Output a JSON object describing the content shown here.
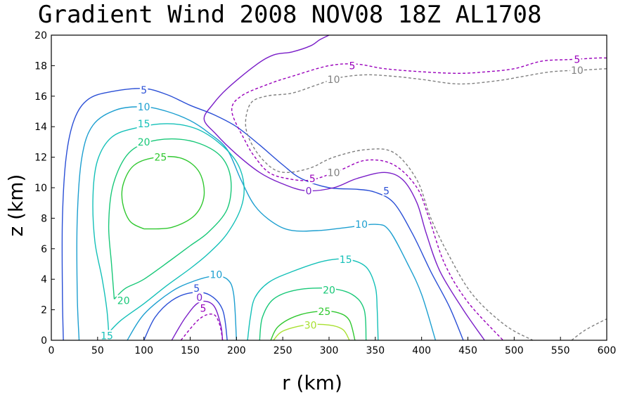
{
  "chart_data": {
    "type": "contour",
    "title": "Gradient Wind 2008 NOV08 18Z  AL1708",
    "xlabel": "r (km)",
    "ylabel": "z (km)",
    "xlim": [
      0,
      600
    ],
    "ylim": [
      0,
      20
    ],
    "xticks": [
      0,
      50,
      100,
      150,
      200,
      250,
      300,
      350,
      400,
      450,
      500,
      550,
      600
    ],
    "yticks": [
      0,
      2,
      4,
      6,
      8,
      10,
      12,
      14,
      16,
      18,
      20
    ],
    "levels": [
      -10,
      -5,
      0,
      5,
      10,
      15,
      20,
      25,
      30
    ],
    "colors": {
      "m10": "#808080",
      "m5": "#9900bb",
      "0": "#7a1ec8",
      "5": "#2a4fd6",
      "10": "#1d9fd0",
      "15": "#14c0b8",
      "20": "#18c878",
      "25": "#30c830",
      "30": "#a8e030"
    },
    "contours": [
      {
        "level": "5",
        "color_key": "5",
        "dashed": false,
        "points": [
          [
            13,
            0
          ],
          [
            12,
            3
          ],
          [
            12,
            8
          ],
          [
            16,
            12
          ],
          [
            25,
            14.5
          ],
          [
            40,
            15.8
          ],
          [
            65,
            16.3
          ],
          [
            100,
            16.5
          ],
          [
            125,
            16.1
          ],
          [
            150,
            15.4
          ],
          [
            175,
            14.8
          ],
          [
            200,
            14.0
          ],
          [
            225,
            12.8
          ],
          [
            250,
            11.5
          ],
          [
            270,
            10.6
          ],
          [
            300,
            10.0
          ],
          [
            330,
            9.9
          ],
          [
            350,
            9.7
          ],
          [
            370,
            9.0
          ],
          [
            390,
            7.0
          ],
          [
            410,
            4.5
          ],
          [
            430,
            2.2
          ],
          [
            445,
            0
          ]
        ]
      },
      {
        "level": "5",
        "color_key": "5",
        "dashed": false,
        "points": [
          [
            100,
            0
          ],
          [
            112,
            1.5
          ],
          [
            130,
            2.6
          ],
          [
            150,
            3.1
          ],
          [
            170,
            3.0
          ],
          [
            185,
            2.0
          ],
          [
            190,
            0
          ]
        ]
      },
      {
        "level": "10",
        "color_key": "10",
        "dashed": false,
        "points": [
          [
            30,
            0
          ],
          [
            28,
            3
          ],
          [
            28,
            8
          ],
          [
            33,
            12
          ],
          [
            45,
            14.1
          ],
          [
            70,
            15.1
          ],
          [
            100,
            15.3
          ],
          [
            125,
            15.0
          ],
          [
            150,
            14.4
          ],
          [
            170,
            13.6
          ],
          [
            190,
            12.5
          ],
          [
            205,
            10.5
          ],
          [
            220,
            8.8
          ],
          [
            240,
            7.7
          ],
          [
            260,
            7.2
          ],
          [
            290,
            7.2
          ],
          [
            320,
            7.4
          ],
          [
            350,
            7.6
          ],
          [
            365,
            7.2
          ],
          [
            385,
            5.0
          ],
          [
            400,
            3.0
          ],
          [
            415,
            0
          ]
        ]
      },
      {
        "level": "10",
        "color_key": "10",
        "dashed": false,
        "points": [
          [
            82,
            0
          ],
          [
            100,
            1.7
          ],
          [
            130,
            3.2
          ],
          [
            155,
            3.9
          ],
          [
            175,
            4.2
          ],
          [
            190,
            4.0
          ],
          [
            197,
            3.0
          ],
          [
            200,
            0
          ]
        ]
      },
      {
        "level": "15",
        "color_key": "15",
        "dashed": false,
        "points": [
          [
            62,
            0.5
          ],
          [
            75,
            1.3
          ],
          [
            100,
            2.4
          ],
          [
            125,
            3.6
          ],
          [
            150,
            4.7
          ],
          [
            170,
            5.7
          ],
          [
            190,
            7.0
          ],
          [
            205,
            8.7
          ],
          [
            208,
            10.2
          ],
          [
            200,
            11.7
          ],
          [
            180,
            13.0
          ],
          [
            155,
            13.9
          ],
          [
            125,
            14.2
          ],
          [
            90,
            13.9
          ],
          [
            65,
            13.3
          ],
          [
            50,
            11.8
          ],
          [
            45,
            9.5
          ],
          [
            47,
            6.5
          ],
          [
            55,
            4.0
          ],
          [
            60,
            2.0
          ],
          [
            62,
            0.5
          ]
        ]
      },
      {
        "level": "15",
        "color_key": "15",
        "dashed": false,
        "points": [
          [
            212,
            0
          ],
          [
            215,
            1.5
          ],
          [
            220,
            2.8
          ],
          [
            235,
            3.8
          ],
          [
            260,
            4.5
          ],
          [
            295,
            5.2
          ],
          [
            320,
            5.3
          ],
          [
            340,
            4.8
          ],
          [
            350,
            3.5
          ],
          [
            352,
            2.0
          ],
          [
            353,
            0
          ]
        ]
      },
      {
        "level": "20",
        "color_key": "20",
        "dashed": false,
        "points": [
          [
            68,
            2.7
          ],
          [
            80,
            3.4
          ],
          [
            100,
            4.0
          ],
          [
            130,
            5.3
          ],
          [
            150,
            6.2
          ],
          [
            170,
            7.1
          ],
          [
            190,
            8.6
          ],
          [
            194,
            10.5
          ],
          [
            184,
            12.0
          ],
          [
            160,
            12.9
          ],
          [
            130,
            13.2
          ],
          [
            100,
            12.9
          ],
          [
            80,
            12.0
          ],
          [
            66,
            10.0
          ],
          [
            62,
            7.5
          ],
          [
            65,
            5.0
          ],
          [
            68,
            2.7
          ]
        ]
      },
      {
        "level": "20",
        "color_key": "20",
        "dashed": false,
        "points": [
          [
            225,
            0
          ],
          [
            228,
            1.5
          ],
          [
            240,
            2.7
          ],
          [
            265,
            3.3
          ],
          [
            300,
            3.4
          ],
          [
            325,
            3.0
          ],
          [
            338,
            2.0
          ],
          [
            340,
            0
          ]
        ]
      },
      {
        "level": "25",
        "color_key": "25",
        "dashed": false,
        "points": [
          [
            100,
            7.3
          ],
          [
            130,
            7.4
          ],
          [
            155,
            8.2
          ],
          [
            165,
            9.5
          ],
          [
            160,
            11.0
          ],
          [
            142,
            11.9
          ],
          [
            115,
            12.0
          ],
          [
            90,
            11.5
          ],
          [
            78,
            10.3
          ],
          [
            77,
            9.0
          ],
          [
            85,
            7.8
          ],
          [
            100,
            7.3
          ]
        ]
      },
      {
        "level": "25",
        "color_key": "25",
        "dashed": false,
        "points": [
          [
            237,
            0
          ],
          [
            245,
            0.9
          ],
          [
            265,
            1.6
          ],
          [
            290,
            1.9
          ],
          [
            310,
            1.8
          ],
          [
            322,
            1.3
          ],
          [
            328,
            0
          ]
        ]
      },
      {
        "level": "30",
        "color_key": "30",
        "dashed": false,
        "points": [
          [
            240,
            0
          ],
          [
            250,
            0.6
          ],
          [
            275,
            1.0
          ],
          [
            300,
            1.0
          ],
          [
            315,
            0.7
          ],
          [
            322,
            0
          ]
        ]
      },
      {
        "level": "0",
        "color_key": "0",
        "dashed": false,
        "points": [
          [
            300,
            20
          ],
          [
            290,
            19.7
          ],
          [
            280,
            19.3
          ],
          [
            260,
            18.9
          ],
          [
            240,
            18.7
          ],
          [
            220,
            18.0
          ],
          [
            190,
            16.5
          ],
          [
            175,
            15.5
          ],
          [
            165,
            14.5
          ],
          [
            178,
            13.5
          ],
          [
            200,
            12.2
          ],
          [
            225,
            11.0
          ],
          [
            248,
            10.3
          ],
          [
            275,
            9.8
          ],
          [
            305,
            10.0
          ],
          [
            330,
            10.6
          ],
          [
            360,
            11.0
          ],
          [
            380,
            10.5
          ],
          [
            395,
            9.0
          ],
          [
            405,
            7.0
          ],
          [
            420,
            4.5
          ],
          [
            445,
            2.0
          ],
          [
            468,
            0
          ]
        ]
      },
      {
        "level": "0",
        "color_key": "0",
        "dashed": false,
        "points": [
          [
            130,
            0
          ],
          [
            145,
            1.5
          ],
          [
            160,
            2.5
          ],
          [
            175,
            2.3
          ],
          [
            183,
            1.0
          ],
          [
            185,
            0
          ]
        ]
      },
      {
        "level": "-5",
        "color_key": "m5",
        "dashed": true,
        "points": [
          [
            600,
            18.5
          ],
          [
            590,
            18.5
          ],
          [
            560,
            18.4
          ],
          [
            530,
            18.3
          ],
          [
            500,
            17.8
          ],
          [
            470,
            17.6
          ],
          [
            440,
            17.5
          ],
          [
            400,
            17.6
          ],
          [
            360,
            17.8
          ],
          [
            330,
            18.1
          ],
          [
            300,
            18.0
          ],
          [
            260,
            17.3
          ],
          [
            235,
            16.8
          ],
          [
            205,
            16.0
          ],
          [
            195,
            15.0
          ],
          [
            210,
            13.0
          ],
          [
            220,
            12.0
          ],
          [
            235,
            11.0
          ],
          [
            255,
            10.6
          ],
          [
            280,
            10.5
          ],
          [
            310,
            11.1
          ],
          [
            340,
            11.8
          ],
          [
            370,
            11.5
          ],
          [
            395,
            10.0
          ],
          [
            408,
            8.0
          ],
          [
            425,
            5.0
          ],
          [
            450,
            2.5
          ],
          [
            488,
            0
          ]
        ]
      },
      {
        "level": "-5",
        "color_key": "m5",
        "dashed": true,
        "points": [
          [
            140,
            0
          ],
          [
            160,
            1.4
          ],
          [
            175,
            1.7
          ],
          [
            182,
            1.0
          ],
          [
            185,
            0
          ]
        ]
      },
      {
        "level": "-10",
        "color_key": "m10",
        "dashed": true,
        "points": [
          [
            600,
            17.8
          ],
          [
            570,
            17.7
          ],
          [
            540,
            17.6
          ],
          [
            510,
            17.3
          ],
          [
            480,
            17.0
          ],
          [
            440,
            16.8
          ],
          [
            400,
            17.1
          ],
          [
            370,
            17.3
          ],
          [
            340,
            17.4
          ],
          [
            310,
            17.2
          ],
          [
            285,
            16.7
          ],
          [
            260,
            16.2
          ],
          [
            232,
            16.0
          ],
          [
            215,
            15.5
          ],
          [
            210,
            14.0
          ],
          [
            220,
            12.5
          ],
          [
            238,
            11.3
          ],
          [
            255,
            11.0
          ],
          [
            280,
            11.3
          ],
          [
            305,
            12.0
          ],
          [
            340,
            12.5
          ],
          [
            370,
            12.3
          ],
          [
            395,
            10.5
          ],
          [
            410,
            8.0
          ],
          [
            430,
            5.5
          ],
          [
            455,
            3.0
          ],
          [
            490,
            1.0
          ],
          [
            520,
            0
          ]
        ]
      },
      {
        "level": "-10",
        "color_key": "m10",
        "dashed": true,
        "points": [
          [
            562,
            0
          ],
          [
            575,
            0.6
          ],
          [
            590,
            1.1
          ],
          [
            600,
            1.4
          ]
        ]
      }
    ],
    "contour_labels": [
      {
        "text": "5",
        "x": 100,
        "y": 16.4,
        "color_key": "5"
      },
      {
        "text": "10",
        "x": 100,
        "y": 15.3,
        "color_key": "10"
      },
      {
        "text": "15",
        "x": 100,
        "y": 14.2,
        "color_key": "15"
      },
      {
        "text": "20",
        "x": 100,
        "y": 13.0,
        "color_key": "20"
      },
      {
        "text": "25",
        "x": 118,
        "y": 12.0,
        "color_key": "25"
      },
      {
        "text": "20",
        "x": 78,
        "y": 2.6,
        "color_key": "20"
      },
      {
        "text": "15",
        "x": 60,
        "y": 0.3,
        "color_key": "15"
      },
      {
        "text": "10",
        "x": 178,
        "y": 4.3,
        "color_key": "10"
      },
      {
        "text": "5",
        "x": 157,
        "y": 3.4,
        "color_key": "5"
      },
      {
        "text": "0",
        "x": 160,
        "y": 2.8,
        "color_key": "0"
      },
      {
        "text": "5",
        "x": 164,
        "y": 2.1,
        "color_key": "m5"
      },
      {
        "text": "0",
        "x": 278,
        "y": 9.8,
        "color_key": "0"
      },
      {
        "text": "5",
        "x": 282,
        "y": 10.6,
        "color_key": "m5"
      },
      {
        "text": "10",
        "x": 305,
        "y": 11.0,
        "color_key": "m10"
      },
      {
        "text": "5",
        "x": 362,
        "y": 9.8,
        "color_key": "5"
      },
      {
        "text": "10",
        "x": 335,
        "y": 7.6,
        "color_key": "10"
      },
      {
        "text": "15",
        "x": 318,
        "y": 5.3,
        "color_key": "15"
      },
      {
        "text": "20",
        "x": 300,
        "y": 3.3,
        "color_key": "20"
      },
      {
        "text": "25",
        "x": 295,
        "y": 1.9,
        "color_key": "25"
      },
      {
        "text": "30",
        "x": 280,
        "y": 1.0,
        "color_key": "30"
      },
      {
        "text": "5",
        "x": 325,
        "y": 18.0,
        "color_key": "m5"
      },
      {
        "text": "10",
        "x": 305,
        "y": 17.1,
        "color_key": "m10"
      },
      {
        "text": "5",
        "x": 568,
        "y": 18.4,
        "color_key": "m5"
      },
      {
        "text": "10",
        "x": 568,
        "y": 17.7,
        "color_key": "m10"
      }
    ]
  }
}
